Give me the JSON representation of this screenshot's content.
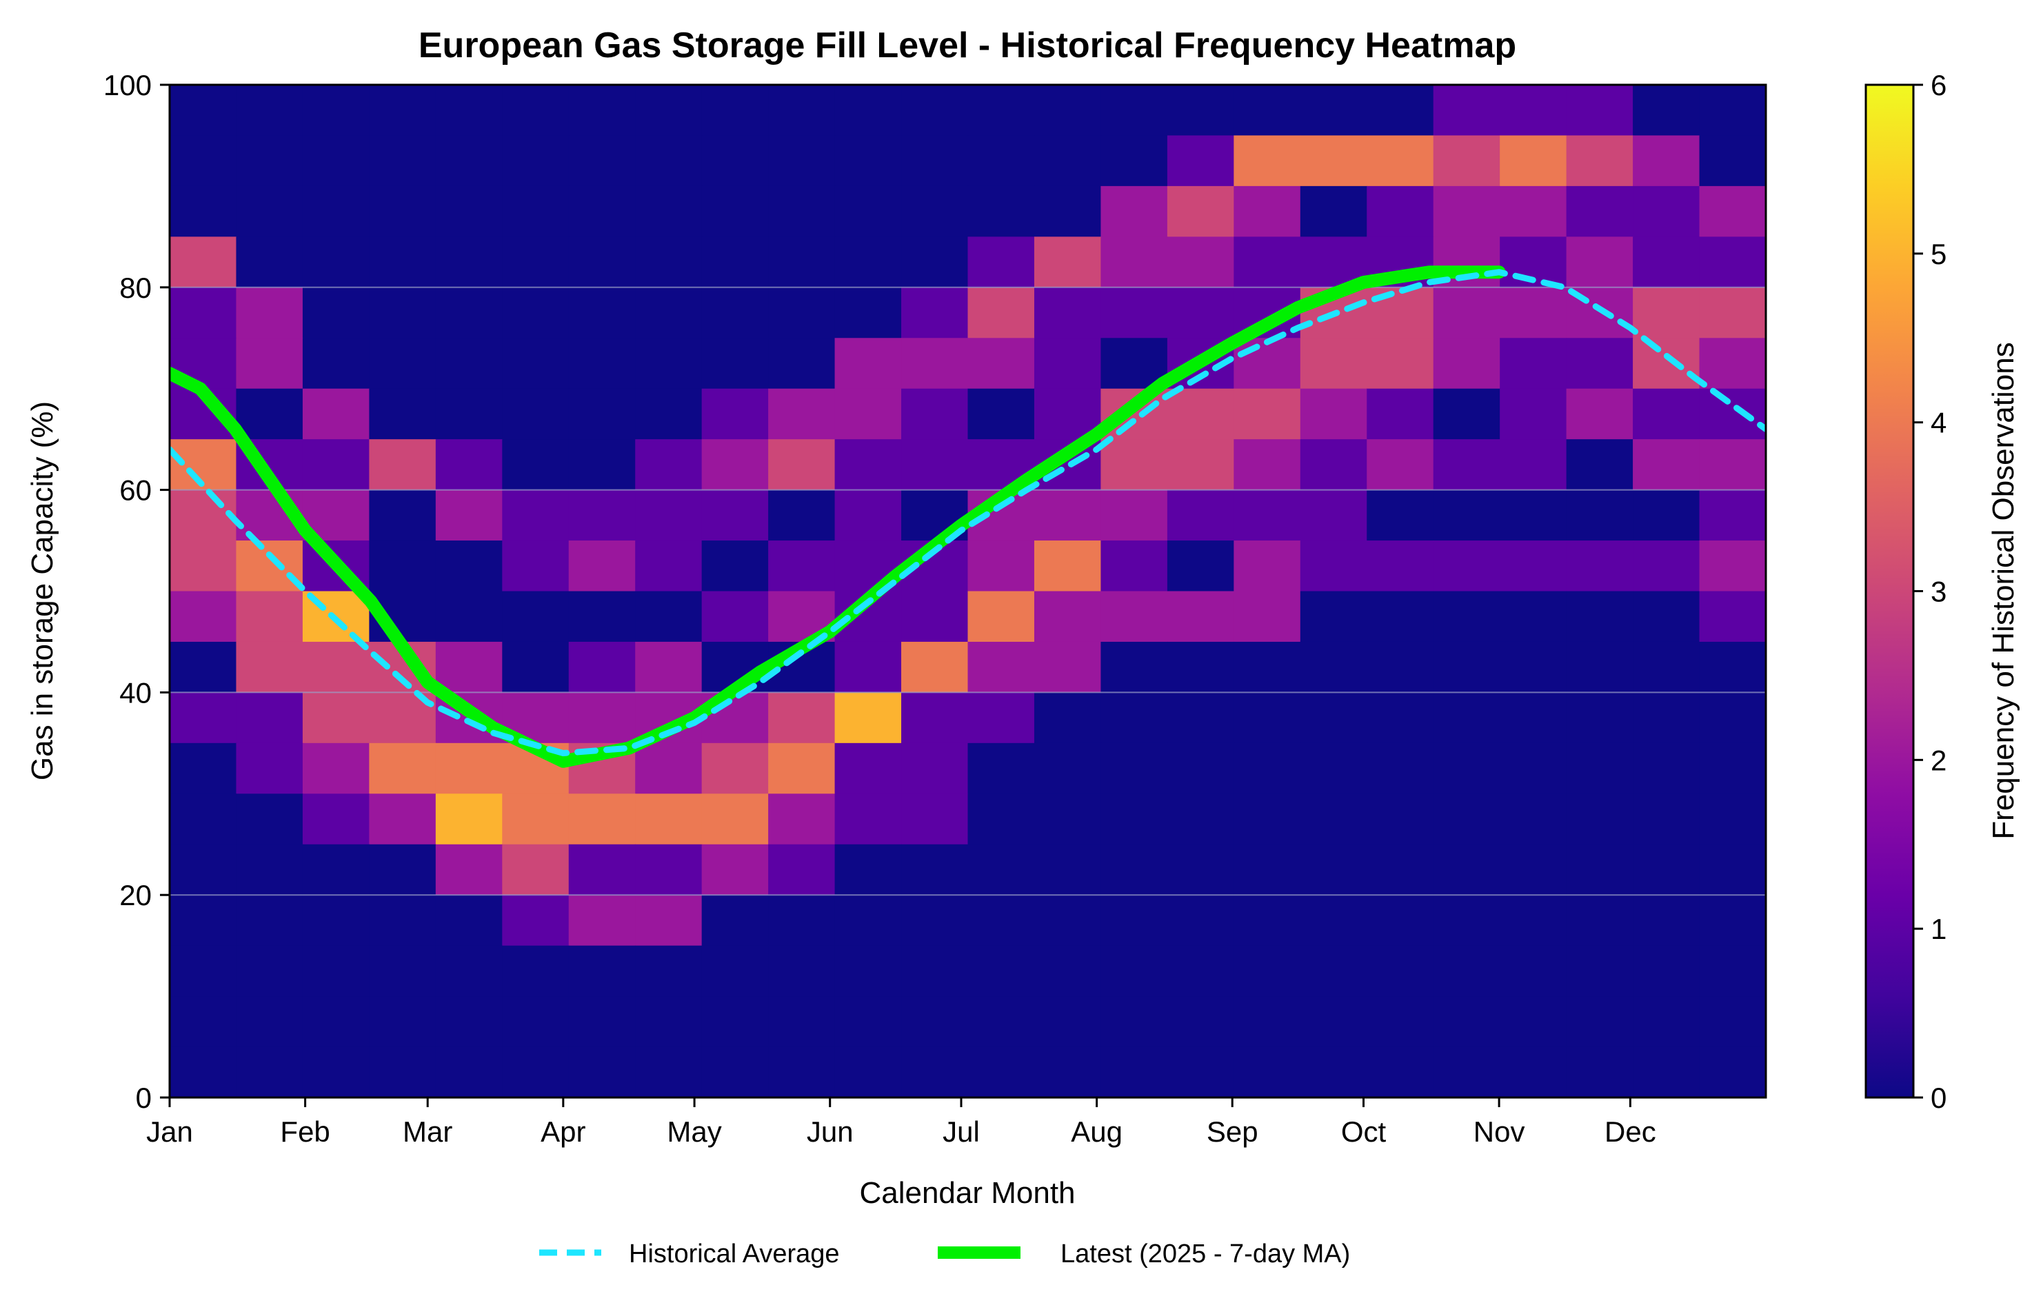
{
  "chart_data": {
    "type": "heatmap",
    "title": "European Gas Storage Fill Level - Historical Frequency Heatmap",
    "xlabel": "Calendar Month",
    "ylabel": "Gas in storage Capacity (%)",
    "colorbar_label": "Frequency of Historical Observations",
    "colormap": "plasma",
    "colorbar_range": [
      0,
      6
    ],
    "colorbar_ticks": [
      "0",
      "1",
      "2",
      "3",
      "4",
      "5",
      "6"
    ],
    "xlim_days": [
      0,
      365
    ],
    "ylim": [
      0,
      100
    ],
    "x_ticks": [
      {
        "label": "Jan",
        "day": 0
      },
      {
        "label": "Feb",
        "day": 31
      },
      {
        "label": "Mar",
        "day": 59
      },
      {
        "label": "Apr",
        "day": 90
      },
      {
        "label": "May",
        "day": 120
      },
      {
        "label": "Jun",
        "day": 151
      },
      {
        "label": "Jul",
        "day": 181
      },
      {
        "label": "Aug",
        "day": 212
      },
      {
        "label": "Sep",
        "day": 243
      },
      {
        "label": "Oct",
        "day": 273
      },
      {
        "label": "Nov",
        "day": 304
      },
      {
        "label": "Dec",
        "day": 334
      }
    ],
    "y_ticks": [
      "0",
      "20",
      "40",
      "60",
      "80",
      "100"
    ],
    "gridlines_y": [
      20,
      40,
      60,
      80
    ],
    "heatmap_bin_pct": 5,
    "heatmap_columns": "half-month bins, Jan 1 to Dec 31 (24 columns)",
    "heatmap_rows_top_to_bottom": [
      "000000000000000000011100",
      "000000000000000144434320",
      "000000000000002320122112",
      "300000000000132211121211",
      "120000000001311113322233",
      "120000000022210123321132",
      "102000001221013332101211",
      "411310012311113321211022",
      "322021111010222111000001",
      "341001210111241021111112",
      "235000001211422220000001",
      "033320120014220000000000",
      "113322222351100000000000",
      "012444323411000000000000",
      "001254444211000000000000",
      "000023112100000000000000",
      "000001220000000000000000",
      "000000000000000000000000",
      "000000000000000000000000",
      "000000000000000000000000"
    ],
    "legend": {
      "placement": "bottom-center",
      "entries": [
        "Historical Average",
        "Latest (2025 - 7-day MA)"
      ]
    },
    "series": [
      {
        "name": "Historical Average",
        "style": "dashed",
        "color": "#1ee6ff",
        "x_day": [
          0,
          15,
          31,
          46,
          59,
          74,
          90,
          105,
          120,
          135,
          151,
          166,
          181,
          196,
          212,
          227,
          243,
          258,
          273,
          288,
          304,
          319,
          334,
          349,
          365
        ],
        "y": [
          64,
          57,
          50,
          44,
          39,
          36,
          34,
          34.5,
          37,
          41,
          46,
          51,
          56,
          60,
          64,
          69,
          73,
          76,
          78.5,
          80.5,
          81.5,
          80,
          76,
          71,
          66
        ]
      },
      {
        "name": "Latest (2025 - 7-day MA)",
        "style": "solid",
        "color": "#00f000",
        "x_day": [
          0,
          7,
          15,
          31,
          46,
          59,
          74,
          90,
          105,
          120,
          135,
          151,
          166,
          181,
          196,
          212,
          227,
          243,
          258,
          273,
          288,
          304
        ],
        "y": [
          71.5,
          70,
          66,
          56,
          49,
          41,
          36.5,
          33.2,
          34.5,
          37.5,
          42,
          46,
          51.5,
          56.5,
          61,
          65.5,
          70.5,
          74.5,
          78,
          80.5,
          81.5,
          81.5
        ]
      }
    ]
  }
}
